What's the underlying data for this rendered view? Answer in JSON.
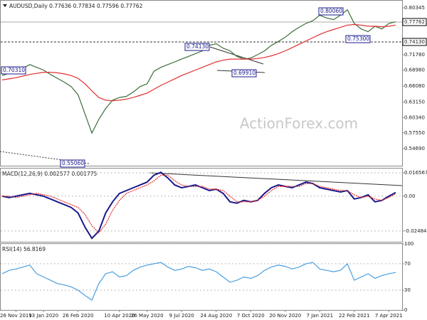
{
  "chart_data": [
    {
      "type": "line",
      "title": "AUDUSD,Daily 0.77636 0.77834 0.77596 0.77762",
      "watermark": "ActionForex.com",
      "series": [
        {
          "color": "#3a6e3a",
          "values": [
            0.68,
            0.684,
            0.688,
            0.693,
            0.7,
            0.695,
            0.69,
            0.682,
            0.675,
            0.668,
            0.66,
            0.645,
            0.61,
            0.575,
            0.6,
            0.62,
            0.635,
            0.64,
            0.642,
            0.65,
            0.66,
            0.665,
            0.688,
            0.695,
            0.7,
            0.705,
            0.71,
            0.715,
            0.72,
            0.725,
            0.735,
            0.738,
            0.73,
            0.725,
            0.715,
            0.71,
            0.712,
            0.718,
            0.725,
            0.735,
            0.742,
            0.75,
            0.76,
            0.768,
            0.775,
            0.78,
            0.79,
            0.785,
            0.782,
            0.79,
            0.8,
            0.775,
            0.765,
            0.76,
            0.77,
            0.765,
            0.775,
            0.778
          ]
        },
        {
          "color": "#e03030",
          "values": [
            0.672,
            0.674,
            0.676,
            0.679,
            0.682,
            0.684,
            0.686,
            0.686,
            0.685,
            0.683,
            0.68,
            0.675,
            0.665,
            0.652,
            0.64,
            0.635,
            0.634,
            0.635,
            0.637,
            0.64,
            0.644,
            0.648,
            0.655,
            0.662,
            0.668,
            0.674,
            0.68,
            0.685,
            0.69,
            0.695,
            0.7,
            0.705,
            0.708,
            0.71,
            0.71,
            0.71,
            0.71,
            0.711,
            0.713,
            0.716,
            0.72,
            0.725,
            0.731,
            0.737,
            0.743,
            0.749,
            0.755,
            0.76,
            0.764,
            0.768,
            0.772,
            0.773,
            0.772,
            0.77,
            0.77,
            0.769,
            0.77,
            0.772
          ]
        }
      ],
      "ylim": [
        0.5156,
        0.8165
      ],
      "yticks": [
        0.80345,
        {
          "value": 0.7178,
          "label": "0.71780"
        },
        {
          "value": 0.6898,
          "label": "0.68980"
        },
        {
          "value": 0.6608,
          "label": "0.66080"
        },
        {
          "value": 0.6315,
          "label": "0.63150"
        },
        {
          "value": 0.6034,
          "label": "0.60340"
        },
        {
          "value": 0.5755,
          "label": "0.57550"
        },
        {
          "value": 0.5469,
          "label": "0.54690"
        }
      ],
      "markers": [
        {
          "value": 0.77762,
          "label": "0.77762"
        },
        {
          "value": 0.7413,
          "label": "0.74130"
        }
      ],
      "annotations": [
        "0.80060",
        "0.75300",
        "0.74130",
        "0.70310",
        "0.69910",
        "0.55060"
      ]
    },
    {
      "type": "line",
      "title": "MACD(12,26,9) 0.002577 0.001775",
      "series": [
        {
          "color": "#1a1a8c",
          "values": [
            0.0,
            -0.001,
            0.0,
            0.001,
            0.002,
            0.001,
            0.0,
            -0.002,
            -0.004,
            -0.006,
            -0.008,
            -0.012,
            -0.022,
            -0.03,
            -0.025,
            -0.012,
            -0.004,
            0.002,
            0.004,
            0.006,
            0.008,
            0.01,
            0.015,
            0.017,
            0.013,
            0.008,
            0.006,
            0.007,
            0.008,
            0.006,
            0.004,
            0.005,
            0.002,
            -0.004,
            -0.005,
            -0.003,
            -0.004,
            -0.003,
            0.002,
            0.006,
            0.008,
            0.007,
            0.006,
            0.008,
            0.01,
            0.009,
            0.006,
            0.005,
            0.004,
            0.003,
            0.004,
            -0.002,
            -0.001,
            0.001,
            -0.004,
            -0.003,
            0.0,
            0.0026
          ]
        },
        {
          "color": "#e03030",
          "values": [
            0.0,
            0.0,
            -0.001,
            0.0,
            0.001,
            0.002,
            0.001,
            0.0,
            -0.002,
            -0.004,
            -0.006,
            -0.008,
            -0.013,
            -0.021,
            -0.026,
            -0.02,
            -0.01,
            -0.003,
            0.002,
            0.004,
            0.006,
            0.008,
            0.011,
            0.015,
            0.015,
            0.011,
            0.008,
            0.007,
            0.007,
            0.007,
            0.005,
            0.005,
            0.004,
            0.0,
            -0.004,
            -0.004,
            -0.004,
            -0.003,
            0.0,
            0.004,
            0.007,
            0.007,
            0.007,
            0.007,
            0.009,
            0.009,
            0.007,
            0.006,
            0.005,
            0.004,
            0.004,
            0.001,
            -0.001,
            0.0,
            -0.002,
            -0.003,
            -0.001,
            0.0018
          ]
        }
      ],
      "ylim": [
        -0.0325,
        0.0197
      ],
      "yticks": [
        0.016567,
        {
          "value": 0,
          "label": "0.00"
        },
        -0.02484
      ]
    },
    {
      "type": "line",
      "title": "RSI(14) 56.8169",
      "series": [
        {
          "color": "#4a9fe0",
          "values": [
            55,
            60,
            62,
            65,
            68,
            55,
            50,
            45,
            40,
            38,
            35,
            30,
            22,
            15,
            40,
            55,
            58,
            50,
            52,
            60,
            65,
            68,
            70,
            72,
            65,
            60,
            62,
            66,
            64,
            60,
            62,
            58,
            50,
            42,
            45,
            50,
            48,
            52,
            60,
            65,
            68,
            66,
            62,
            65,
            70,
            72,
            62,
            60,
            58,
            60,
            70,
            45,
            50,
            55,
            48,
            52,
            55,
            56.8169
          ]
        }
      ],
      "ylim": [
        0,
        100
      ],
      "yticks": [
        100,
        70,
        30,
        0
      ],
      "xticks": [
        {
          "value": 2,
          "label": "26 Nov 2019"
        },
        {
          "value": 6,
          "label": "13 Jan 2020"
        },
        {
          "value": 11,
          "label": "26 Feb 2020"
        },
        {
          "value": 17,
          "label": "10 Apr 2020"
        },
        {
          "value": 21,
          "label": "26 May 2020"
        },
        {
          "value": 26,
          "label": "9 Jul 2020"
        },
        {
          "value": 31,
          "label": "24 Aug 2020"
        },
        {
          "value": 36,
          "label": "7 Oct 2020"
        },
        {
          "value": 41,
          "label": "20 Nov 2020"
        },
        {
          "value": 46,
          "label": "7 Jan 2021"
        },
        {
          "value": 51,
          "label": "22 Feb 2021"
        },
        {
          "value": 56,
          "label": "7 Apr 2021"
        }
      ]
    }
  ]
}
